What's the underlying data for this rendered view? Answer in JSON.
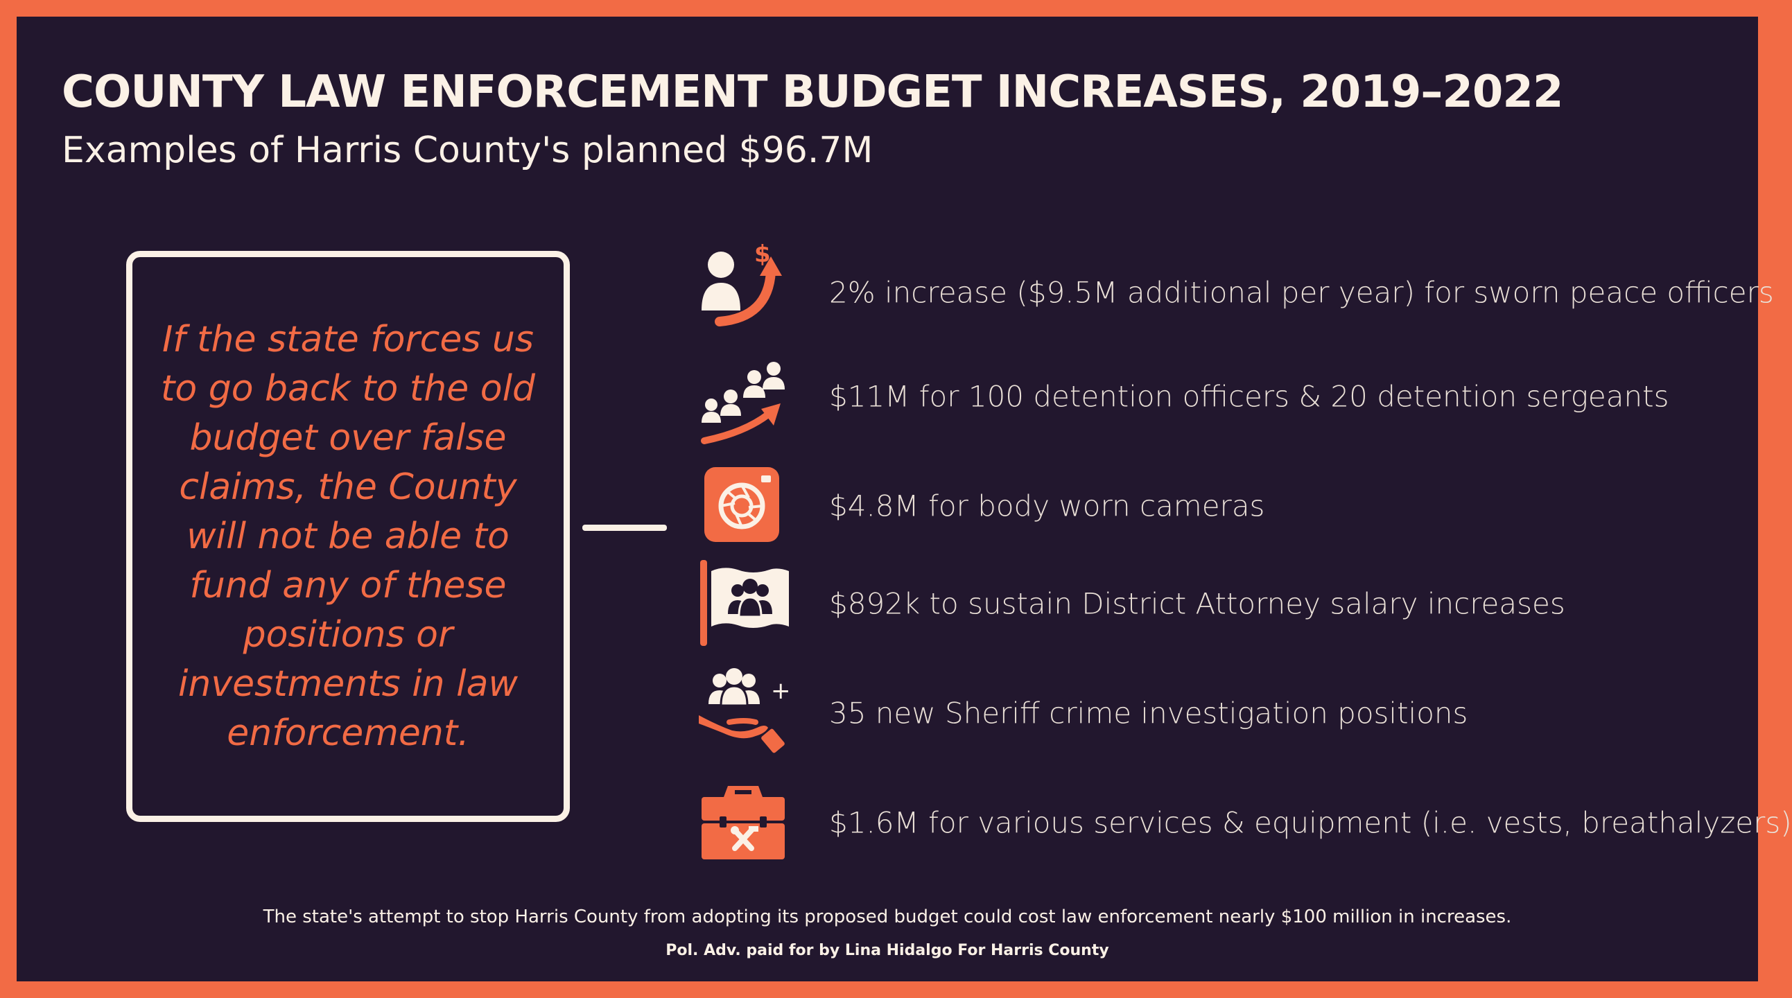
{
  "header": {
    "title": "COUNTY LAW ENFORCEMENT BUDGET INCREASES, 2019–2022",
    "subtitle": "Examples of Harris County's planned $96.7M"
  },
  "quote": {
    "text": "If the state forces us to go back to the old budget over false claims, the County will not be able to fund any of these positions or investments in law enforcement."
  },
  "items": [
    {
      "icon": "officer-salary-increase-icon",
      "text": "2% increase ($9.5M additional per year) for sworn peace officers"
    },
    {
      "icon": "staff-growth-icon",
      "text": "$11M for 100 detention officers & 20 detention sergeants"
    },
    {
      "icon": "camera-icon",
      "text": "$4.8M for body worn cameras"
    },
    {
      "icon": "team-flag-icon",
      "text": "$892k to sustain District Attorney salary increases"
    },
    {
      "icon": "add-people-hand-icon",
      "text": "35 new Sheriff crime investigation positions"
    },
    {
      "icon": "toolbox-icon",
      "text": "$1.6M for various services & equipment (i.e. vests, breathalyzers)"
    }
  ],
  "footer": {
    "note": "The state's attempt to stop Harris County from adopting its proposed budget could cost law enforcement nearly $100 million in increases.",
    "credit": "Pol. Adv. paid for by Lina Hidalgo For Harris County"
  },
  "colors": {
    "accent": "#f26b45",
    "background": "#22172e",
    "text": "#fbf1e6"
  }
}
